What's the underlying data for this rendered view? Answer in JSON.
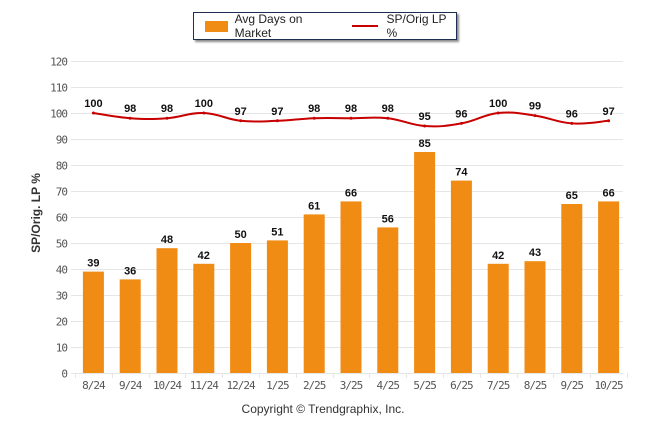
{
  "chart_data": {
    "type": "bar",
    "categories": [
      "8/24",
      "9/24",
      "10/24",
      "11/24",
      "12/24",
      "1/25",
      "2/25",
      "3/25",
      "4/25",
      "5/25",
      "6/25",
      "7/25",
      "8/25",
      "9/25",
      "10/25"
    ],
    "series": [
      {
        "name": "Avg Days on Market",
        "type": "bar",
        "color": "#f08c14",
        "values": [
          39,
          36,
          48,
          42,
          50,
          51,
          61,
          66,
          56,
          85,
          74,
          42,
          43,
          65,
          66
        ]
      },
      {
        "name": "SP/Orig LP %",
        "type": "line",
        "color": "#c80000",
        "values": [
          100,
          98,
          98,
          100,
          97,
          97,
          98,
          98,
          98,
          95,
          96,
          100,
          99,
          96,
          97
        ]
      }
    ],
    "ylabel": "SP/Orig. LP %",
    "xlabel": "",
    "ylim": [
      0,
      120
    ],
    "yticks": [
      0,
      10,
      20,
      30,
      40,
      50,
      60,
      70,
      80,
      90,
      100,
      110,
      120
    ],
    "grid": true,
    "legend": "top-center"
  },
  "legend": {
    "bar_label": "Avg Days on Market",
    "line_label": "SP/Orig LP %"
  },
  "footer": {
    "copyright": "Copyright © Trendgraphix, Inc."
  }
}
